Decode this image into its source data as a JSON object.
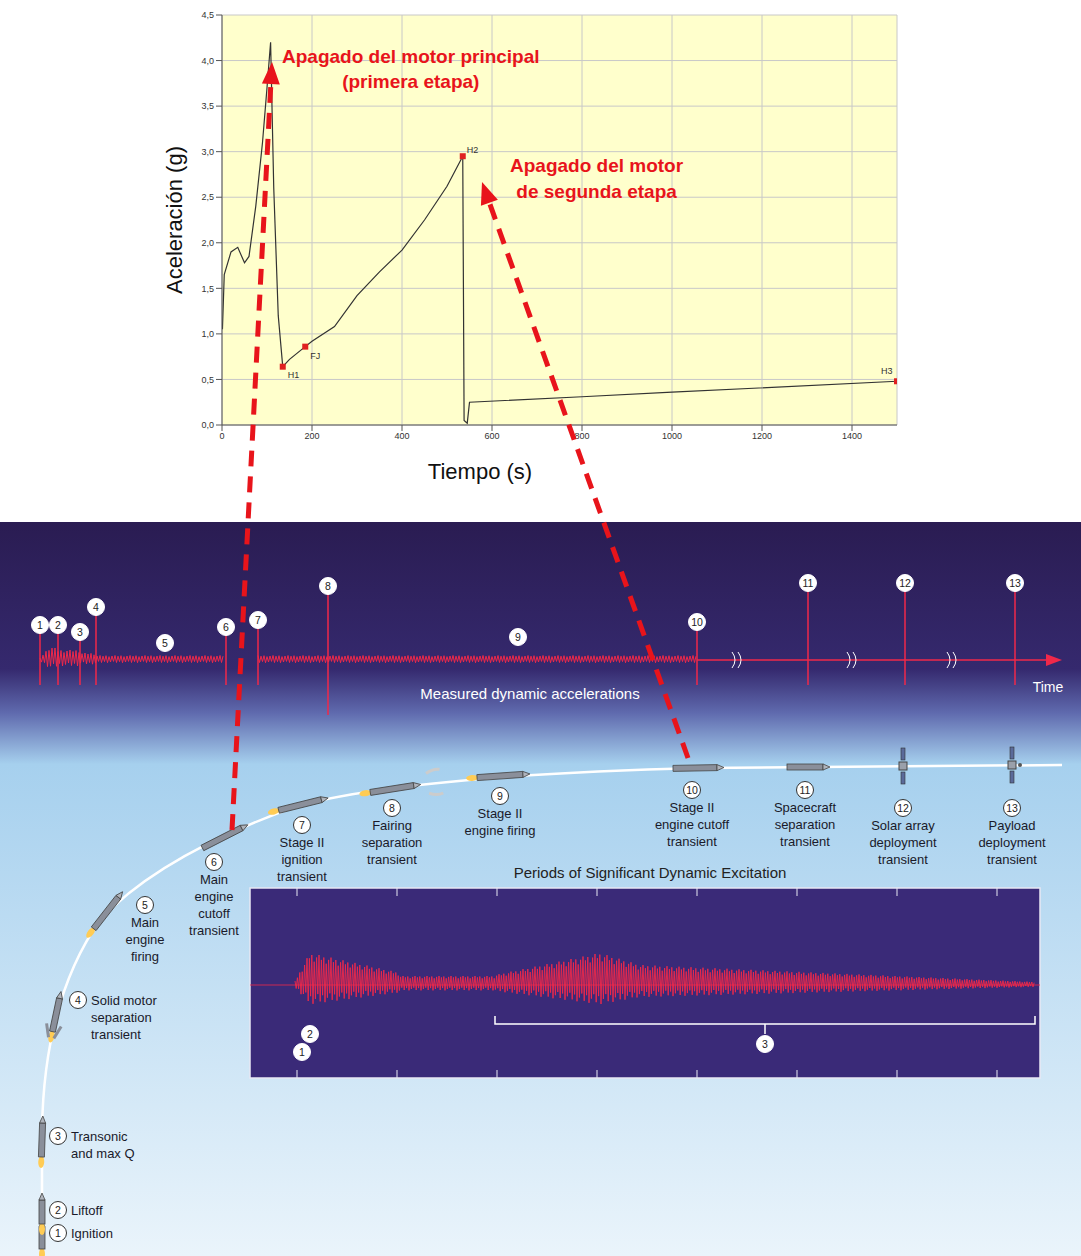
{
  "chart_data": {
    "type": "line",
    "xlabel": "Tiempo (s)",
    "ylabel": "Aceleración (g)",
    "x": [
      1,
      5,
      20,
      35,
      50,
      60,
      75,
      90,
      100,
      108,
      115,
      125,
      135,
      150,
      185,
      200,
      250,
      300,
      350,
      400,
      450,
      500,
      535,
      538,
      545,
      550,
      800,
      1000,
      1500
    ],
    "values": [
      1.05,
      1.65,
      1.9,
      1.95,
      1.78,
      1.85,
      2.4,
      3.1,
      3.7,
      4.2,
      2.6,
      1.2,
      0.64,
      0.72,
      0.86,
      0.92,
      1.08,
      1.42,
      1.68,
      1.92,
      2.25,
      2.62,
      2.95,
      0.05,
      0.02,
      0.25,
      0.31,
      0.36,
      0.48
    ],
    "color": "#333333",
    "xlim": [
      0,
      1500
    ],
    "xticks": [
      0,
      200,
      400,
      600,
      800,
      1000,
      1200,
      1400
    ],
    "ylim": [
      0,
      4.5
    ],
    "yticks": [
      {
        "value": 0,
        "label": "0,0"
      },
      {
        "value": 0.5,
        "label": "0,5"
      },
      {
        "value": 1,
        "label": "1,0"
      },
      {
        "value": 1.5,
        "label": "1,5"
      },
      {
        "value": 2,
        "label": "2,0"
      },
      {
        "value": 2.5,
        "label": "2,5"
      },
      {
        "value": 3,
        "label": "3,0"
      },
      {
        "value": 3.5,
        "label": "3,5"
      },
      {
        "value": 4,
        "label": "4,0"
      },
      {
        "value": 4.5,
        "label": "4,5"
      }
    ],
    "grid": true,
    "points": {
      "color": "#e02020",
      "x": [
        135,
        185,
        535,
        1500
      ],
      "y": [
        0.64,
        0.86,
        2.95,
        0.48
      ],
      "labels": [
        "H1",
        "FJ",
        "H2",
        "H3"
      ]
    },
    "annotations": [
      [
        "Apagado del motor principal",
        "(primera etapa)"
      ],
      [
        "Apagado del motor",
        "de segunda etapa"
      ]
    ],
    "annotation_color": "#e8141b"
  },
  "diagram": {
    "band_label": "Measured dynamic accelerations",
    "time_label": "Time",
    "events": [
      {
        "number": 1,
        "label": [
          "Ignition"
        ]
      },
      {
        "number": 2,
        "label": [
          "Liftoff"
        ]
      },
      {
        "number": 3,
        "label": [
          "Transonic",
          "and max Q"
        ]
      },
      {
        "number": 4,
        "label": [
          "Solid motor",
          "separation",
          "transient"
        ]
      },
      {
        "number": 5,
        "label": [
          "Main",
          "engine",
          "firing"
        ]
      },
      {
        "number": 6,
        "label": [
          "Main",
          "engine",
          "cutoff",
          "transient"
        ]
      },
      {
        "number": 7,
        "label": [
          "Stage II",
          "ignition",
          "transient"
        ]
      },
      {
        "number": 8,
        "label": [
          "Fairing",
          "separation",
          "transient"
        ]
      },
      {
        "number": 9,
        "label": [
          "Stage II",
          "engine firing"
        ]
      },
      {
        "number": 10,
        "label": [
          "Stage II",
          "engine cutoff",
          "transient"
        ]
      },
      {
        "number": 11,
        "label": [
          "Spacecraft",
          "separation",
          "transient"
        ]
      },
      {
        "number": 12,
        "label": [
          "Solar array",
          "deployment",
          "transient"
        ]
      },
      {
        "number": 13,
        "label": [
          "Payload",
          "deployment",
          "transient"
        ]
      }
    ],
    "inset": {
      "title": "Periods of Significant Dynamic Excitation",
      "markers": [
        1,
        2,
        3
      ]
    }
  }
}
